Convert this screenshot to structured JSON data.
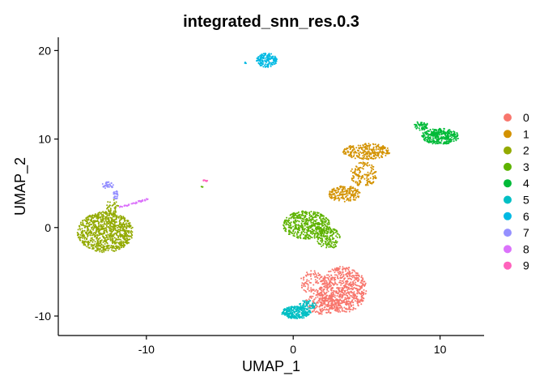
{
  "chart_data": {
    "type": "scatter",
    "title": "integrated_snn_res.0.3",
    "xlabel": "UMAP_1",
    "ylabel": "UMAP_2",
    "xlim": [
      -16,
      13
    ],
    "ylim": [
      -12.2,
      21.5
    ],
    "x_ticks": [
      -10,
      0,
      10
    ],
    "y_ticks": [
      -10,
      0,
      10,
      20
    ],
    "x_tick_labels": [
      "-10",
      "0",
      "10"
    ],
    "y_tick_labels": [
      "-10",
      "0",
      "10",
      "20"
    ],
    "grid": false,
    "legend_position": "right",
    "series": [
      {
        "name": "0",
        "color": "#F8766D",
        "clusters": [
          {
            "cx": 3.4,
            "cy": -7.0,
            "rx": 1.6,
            "ry": 2.6,
            "n": 700
          },
          {
            "cx": 2.0,
            "cy": -8.6,
            "rx": 1.2,
            "ry": 1.2,
            "n": 200
          },
          {
            "cx": 1.3,
            "cy": -6.2,
            "rx": 0.8,
            "ry": 1.4,
            "n": 100
          }
        ]
      },
      {
        "name": "1",
        "color": "#D39200",
        "clusters": [
          {
            "cx": 5.0,
            "cy": 8.6,
            "rx": 1.6,
            "ry": 0.9,
            "n": 260
          },
          {
            "cx": 4.8,
            "cy": 6.0,
            "rx": 0.9,
            "ry": 1.4,
            "n": 140
          },
          {
            "cx": 3.5,
            "cy": 3.8,
            "rx": 1.1,
            "ry": 0.9,
            "n": 180
          }
        ]
      },
      {
        "name": "2",
        "color": "#93AA00",
        "clusters": [
          {
            "cx": -12.8,
            "cy": -0.5,
            "rx": 1.9,
            "ry": 2.3,
            "n": 900
          },
          {
            "cx": -12.3,
            "cy": 2.3,
            "rx": 0.4,
            "ry": 1.0,
            "n": 40
          }
        ]
      },
      {
        "name": "3",
        "color": "#5EB300",
        "clusters": [
          {
            "cx": 0.9,
            "cy": 0.3,
            "rx": 1.6,
            "ry": 1.6,
            "n": 500
          },
          {
            "cx": 2.4,
            "cy": -1.2,
            "rx": 0.8,
            "ry": 1.2,
            "n": 150
          },
          {
            "cx": -6.2,
            "cy": 4.6,
            "rx": 0.06,
            "ry": 0.1,
            "n": 3
          }
        ]
      },
      {
        "name": "4",
        "color": "#00BA38",
        "clusters": [
          {
            "cx": 10.0,
            "cy": 10.3,
            "rx": 1.3,
            "ry": 0.9,
            "n": 330
          },
          {
            "cx": 8.7,
            "cy": 11.5,
            "rx": 0.5,
            "ry": 0.5,
            "n": 60
          }
        ]
      },
      {
        "name": "5",
        "color": "#00BFC4",
        "clusters": [
          {
            "cx": 0.2,
            "cy": -9.6,
            "rx": 1.0,
            "ry": 0.7,
            "n": 260
          },
          {
            "cx": 1.0,
            "cy": -8.7,
            "rx": 0.6,
            "ry": 0.5,
            "n": 50
          }
        ]
      },
      {
        "name": "6",
        "color": "#00B9E3",
        "clusters": [
          {
            "cx": -1.8,
            "cy": 18.9,
            "rx": 0.7,
            "ry": 0.8,
            "n": 160
          },
          {
            "cx": -3.2,
            "cy": 18.6,
            "rx": 0.1,
            "ry": 0.1,
            "n": 3
          }
        ]
      },
      {
        "name": "7",
        "color": "#9590FF",
        "clusters": [
          {
            "cx": -12.6,
            "cy": 4.8,
            "rx": 0.4,
            "ry": 0.4,
            "n": 35
          },
          {
            "cx": -12.1,
            "cy": 3.7,
            "rx": 0.2,
            "ry": 0.5,
            "n": 25
          }
        ]
      },
      {
        "name": "8",
        "color": "#DB72FB",
        "clusters": [
          {
            "type": "line",
            "x0": -11.8,
            "y0": 2.3,
            "x1": -9.9,
            "y1": 3.2,
            "n": 45
          }
        ]
      },
      {
        "name": "9",
        "color": "#FF62BC",
        "clusters": [
          {
            "cx": -6.0,
            "cy": 5.3,
            "rx": 0.2,
            "ry": 0.1,
            "n": 12
          }
        ]
      }
    ]
  }
}
